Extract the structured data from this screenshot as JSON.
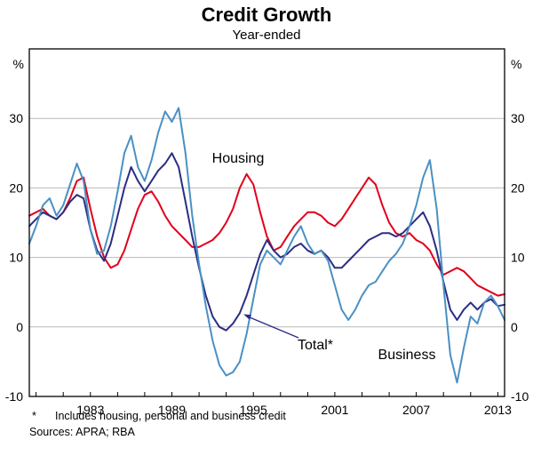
{
  "title": "Credit Growth",
  "subtitle": "Year-ended",
  "unit_left": "%",
  "unit_right": "%",
  "footnote_marker": "*",
  "footnote": "Includes housing, personal and business credit",
  "sources": "Sources: APRA; RBA",
  "chart_data": {
    "type": "line",
    "title": "Credit Growth",
    "subtitle": "Year-ended",
    "ylabel": "%",
    "ylim": [
      -10,
      40
    ],
    "yticks": [
      -10,
      0,
      10,
      20,
      30
    ],
    "xlim": [
      1978.5,
      2013.5
    ],
    "xticks": [
      1983,
      1989,
      1995,
      2001,
      2007,
      2013
    ],
    "x_start": 1978.5,
    "x_step": 0.5,
    "grid": "horizontal",
    "grid_color": "#b9b9b9",
    "axis_color": "#000000",
    "series": [
      {
        "name": "Housing",
        "color": "#e2001a",
        "values": [
          16,
          16.5,
          17,
          16,
          15.5,
          16.5,
          18.5,
          21,
          21.5,
          17,
          13,
          10,
          8.5,
          9,
          11,
          14,
          17,
          19,
          19.5,
          18,
          16,
          14.5,
          13.5,
          12.5,
          11.5,
          11.5,
          12,
          12.5,
          13.5,
          15,
          17,
          20,
          22,
          20.5,
          16.5,
          13,
          11,
          11.5,
          13,
          14.5,
          15.5,
          16.5,
          16.5,
          16,
          15,
          14.5,
          15.5,
          17,
          18.5,
          20,
          21.5,
          20.5,
          17.5,
          15,
          13.5,
          13,
          13.5,
          12.5,
          12,
          11,
          9,
          7.5,
          8,
          8.5,
          8,
          7,
          6,
          5.5,
          5,
          4.5,
          4.7
        ]
      },
      {
        "name": "Total*",
        "color": "#2b2e83",
        "values": [
          14.5,
          15.5,
          16.5,
          16,
          15.5,
          16.5,
          18,
          19,
          18.5,
          14,
          11,
          9.5,
          12,
          16,
          20,
          23,
          21,
          19.5,
          21,
          22.5,
          23.5,
          25,
          23,
          18,
          13,
          8.5,
          4.5,
          1.5,
          0,
          -0.5,
          0.5,
          2,
          4.5,
          7.5,
          10.5,
          12.5,
          11,
          10,
          10.5,
          11.5,
          12,
          11,
          10.5,
          11,
          10,
          8.5,
          8.5,
          9.5,
          10.5,
          11.5,
          12.5,
          13,
          13.5,
          13.5,
          13,
          13.5,
          14.5,
          15.5,
          16.5,
          14.5,
          11,
          6.5,
          2.5,
          1,
          2.5,
          3.5,
          2.5,
          3.5,
          4,
          3,
          3.2
        ]
      },
      {
        "name": "Business",
        "color": "#4a90c4",
        "values": [
          12,
          14.5,
          17.5,
          18.5,
          16,
          17.5,
          20.5,
          23.5,
          21,
          14,
          10.5,
          11,
          14.5,
          19.5,
          25,
          27.5,
          23,
          21,
          24,
          28,
          31,
          29.5,
          31.5,
          25,
          16,
          9,
          3,
          -2,
          -5.5,
          -7,
          -6.5,
          -5,
          -1,
          4,
          9,
          11,
          10,
          9,
          11,
          13,
          14.5,
          12,
          10.5,
          11,
          9.5,
          6,
          2.5,
          1,
          2.5,
          4.5,
          6,
          6.5,
          8,
          9.5,
          10.5,
          12,
          14.5,
          17.5,
          21.5,
          24,
          17,
          6,
          -4,
          -8,
          -3,
          1.5,
          0.5,
          3.5,
          4.5,
          3,
          1
        ]
      }
    ]
  }
}
